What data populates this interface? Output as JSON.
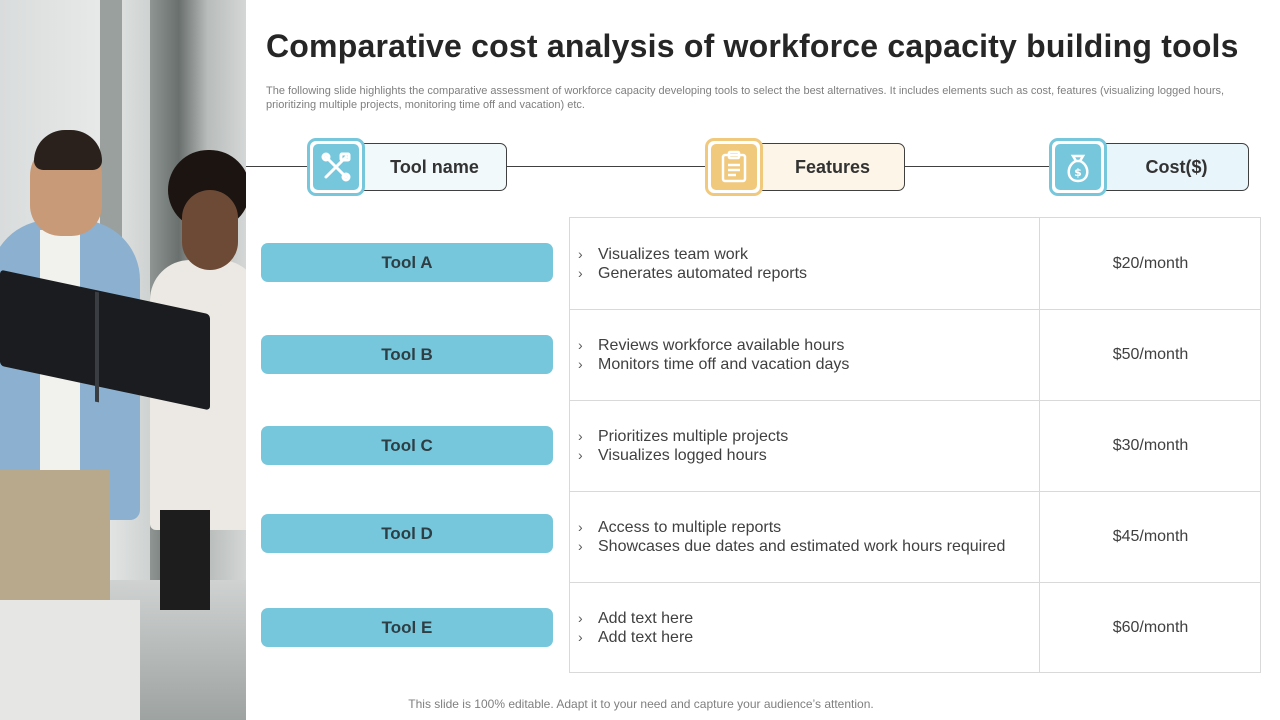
{
  "slide": {
    "title": "Comparative cost analysis of workforce capacity building tools",
    "subtitle": "The following slide highlights the comparative assessment of workforce capacity developing tools to select the best alternatives. It includes elements such as cost, features (visualizing logged hours, prioritizing multiple projects, monitoring time off and vacation) etc.",
    "footer": "This slide is 100% editable. Adapt it to your need and capture your audience’s attention."
  },
  "headers": [
    {
      "label": "Tool name",
      "icon": "tools-icon",
      "color": "#77c7dc",
      "bg": "#f2f9fb"
    },
    {
      "label": "Features",
      "icon": "clipboard-icon",
      "color": "#f1c97c",
      "bg": "#fdf5e8"
    },
    {
      "label": "Cost($)",
      "icon": "money-bag-icon",
      "color": "#77c7dc",
      "bg": "#e8f5fa"
    }
  ],
  "rows": [
    {
      "tool": "Tool A",
      "features": [
        "Visualizes team work",
        "Generates automated reports"
      ],
      "cost": "$20/month"
    },
    {
      "tool": "Tool B",
      "features": [
        "Reviews workforce available hours",
        "Monitors time off and vacation days"
      ],
      "cost": "$50/month"
    },
    {
      "tool": "Tool C",
      "features": [
        "Prioritizes multiple  projects",
        "Visualizes logged hours"
      ],
      "cost": "$30/month"
    },
    {
      "tool": "Tool D",
      "features": [
        "Access to multiple reports",
        "Showcases due dates and estimated work hours  required"
      ],
      "cost": "$45/month"
    },
    {
      "tool": "Tool E",
      "features": [
        "Add text here",
        "Add text here"
      ],
      "cost": "$60/month"
    }
  ],
  "bullet_glyph": "›"
}
